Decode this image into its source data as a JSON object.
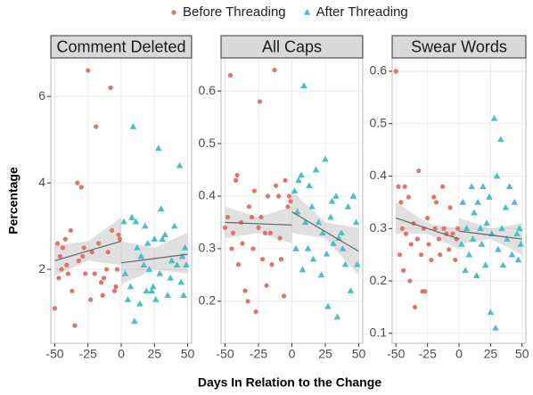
{
  "figure": {
    "xlabel": "Days In Relation to the Change",
    "ylabel": "Percentage"
  },
  "chart_data": [
    {
      "type": "scatter",
      "title": "Comment Deleted",
      "xlim": [
        -53,
        53
      ],
      "xticks": [
        -50,
        -25,
        0,
        25,
        50
      ],
      "ylim": [
        0.29,
        6.89
      ],
      "yticks": [
        2,
        4,
        6
      ],
      "grid": true,
      "series": [
        {
          "name": "Before Threading",
          "color": "#e0736a",
          "shape": "circle",
          "x": [
            -50,
            -48,
            -47,
            -46,
            -45,
            -44,
            -42,
            -41,
            -40,
            -38,
            -37,
            -35,
            -33,
            -32,
            -30,
            -29,
            -28,
            -27,
            -25,
            -23,
            -22,
            -20,
            -19,
            -17,
            -15,
            -14,
            -13,
            -11,
            -10,
            -8,
            -7,
            -5,
            -4,
            -3,
            -2,
            -1
          ],
          "values": [
            1.1,
            2.6,
            1.8,
            2.3,
            2.0,
            2.5,
            2.7,
            2.1,
            1.9,
            2.9,
            1.5,
            0.7,
            4.0,
            2.2,
            3.9,
            2.3,
            2.5,
            1.9,
            6.6,
            1.3,
            2.4,
            1.9,
            5.3,
            2.6,
            1.7,
            1.4,
            1.8,
            2.0,
            2.4,
            6.2,
            2.9,
            1.5,
            1.6,
            2.0,
            2.8,
            2.7
          ],
          "fit_x": [
            -50,
            -25,
            0
          ],
          "fit_y": [
            2.2,
            2.425,
            2.65
          ],
          "band_lower": [
            1.85,
            2.2,
            2.1
          ],
          "band_upper": [
            2.55,
            2.65,
            3.2
          ]
        },
        {
          "name": "After Threading",
          "color": "#4fbdc6",
          "shape": "triangle",
          "x": [
            2,
            3,
            5,
            7,
            8,
            9,
            10,
            11,
            12,
            14,
            15,
            17,
            18,
            19,
            20,
            21,
            23,
            24,
            25,
            26,
            28,
            29,
            30,
            31,
            33,
            35,
            37,
            38,
            40,
            42,
            44,
            45,
            46,
            47,
            48,
            49
          ],
          "values": [
            3.1,
            1.9,
            1.3,
            1.6,
            3.2,
            5.3,
            0.8,
            3.1,
            2.5,
            1.2,
            2.3,
            2.1,
            3.0,
            1.5,
            2.6,
            2.0,
            1.5,
            1.6,
            2.7,
            1.3,
            4.8,
            1.9,
            3.4,
            2.7,
            2.8,
            1.4,
            1.8,
            2.2,
            3.0,
            2.1,
            4.4,
            1.7,
            2.3,
            1.4,
            2.5,
            2.1
          ],
          "fit_x": [
            0,
            25,
            50
          ],
          "fit_y": [
            2.15,
            2.25,
            2.35
          ],
          "band_lower": [
            1.65,
            2.0,
            1.9
          ],
          "band_upper": [
            2.65,
            2.5,
            2.85
          ]
        }
      ]
    },
    {
      "type": "scatter",
      "title": "All Caps",
      "xlim": [
        -53,
        53
      ],
      "xticks": [
        -50,
        -25,
        0,
        25,
        50
      ],
      "ylim": [
        0.12,
        0.663
      ],
      "yticks": [
        0.2,
        0.3,
        0.4,
        0.5,
        0.6
      ],
      "grid": true,
      "series": [
        {
          "name": "Before Threading",
          "color": "#e0736a",
          "shape": "circle",
          "x": [
            -50,
            -48,
            -46,
            -45,
            -44,
            -42,
            -41,
            -40,
            -38,
            -37,
            -35,
            -33,
            -32,
            -30,
            -29,
            -28,
            -27,
            -25,
            -24,
            -23,
            -22,
            -20,
            -19,
            -18,
            -16,
            -15,
            -13,
            -12,
            -10,
            -9,
            -8,
            -6,
            -5,
            -3,
            -2,
            -1
          ],
          "values": [
            0.34,
            0.36,
            0.63,
            0.3,
            0.33,
            0.43,
            0.44,
            0.27,
            0.35,
            0.31,
            0.22,
            0.2,
            0.38,
            0.36,
            0.3,
            0.41,
            0.18,
            0.34,
            0.58,
            0.36,
            0.28,
            0.33,
            0.23,
            0.4,
            0.33,
            0.27,
            0.64,
            0.42,
            0.4,
            0.32,
            0.28,
            0.21,
            0.43,
            0.38,
            0.4,
            0.39
          ],
          "fit_x": [
            -50,
            -25,
            0
          ],
          "fit_y": [
            0.35,
            0.3475,
            0.345
          ],
          "band_lower": [
            0.32,
            0.33,
            0.31
          ],
          "band_upper": [
            0.38,
            0.36,
            0.38
          ]
        },
        {
          "name": "After Threading",
          "color": "#4fbdc6",
          "shape": "triangle",
          "x": [
            2,
            3,
            4,
            5,
            7,
            8,
            9,
            10,
            12,
            13,
            15,
            16,
            18,
            20,
            22,
            23,
            25,
            26,
            27,
            29,
            30,
            31,
            33,
            34,
            35,
            37,
            38,
            40,
            42,
            44,
            46,
            48,
            49
          ],
          "values": [
            0.41,
            0.3,
            0.37,
            0.43,
            0.44,
            0.26,
            0.61,
            0.35,
            0.3,
            0.42,
            0.38,
            0.28,
            0.45,
            0.35,
            0.25,
            0.33,
            0.47,
            0.29,
            0.19,
            0.36,
            0.39,
            0.31,
            0.4,
            0.17,
            0.32,
            0.33,
            0.3,
            0.27,
            0.38,
            0.22,
            0.4,
            0.35,
            0.27
          ],
          "fit_x": [
            0,
            25,
            50
          ],
          "fit_y": [
            0.37,
            0.3325,
            0.295
          ],
          "band_lower": [
            0.33,
            0.32,
            0.25
          ],
          "band_upper": [
            0.41,
            0.35,
            0.34
          ]
        }
      ]
    },
    {
      "type": "scatter",
      "title": "Swear Words",
      "xlim": [
        -53,
        53
      ],
      "xticks": [
        -50,
        -25,
        0,
        25,
        50
      ],
      "ylim": [
        0.081,
        0.6255
      ],
      "yticks": [
        0.1,
        0.2,
        0.3,
        0.4,
        0.5,
        0.6
      ],
      "grid": true,
      "series": [
        {
          "name": "Before Threading",
          "color": "#e0736a",
          "shape": "circle",
          "x": [
            -50,
            -48,
            -47,
            -46,
            -45,
            -44,
            -43,
            -42,
            -40,
            -39,
            -38,
            -36,
            -35,
            -33,
            -32,
            -30,
            -29,
            -28,
            -27,
            -25,
            -24,
            -22,
            -20,
            -19,
            -18,
            -16,
            -15,
            -13,
            -12,
            -10,
            -8,
            -7,
            -5,
            -3,
            -2,
            -1
          ],
          "values": [
            0.6,
            0.38,
            0.25,
            0.35,
            0.3,
            0.22,
            0.38,
            0.29,
            0.36,
            0.2,
            0.27,
            0.31,
            0.15,
            0.28,
            0.41,
            0.25,
            0.18,
            0.3,
            0.18,
            0.32,
            0.27,
            0.24,
            0.36,
            0.3,
            0.35,
            0.28,
            0.25,
            0.38,
            0.3,
            0.29,
            0.26,
            0.34,
            0.29,
            0.24,
            0.28,
            0.3
          ],
          "fit_x": [
            -50,
            -25,
            0
          ],
          "fit_y": [
            0.32,
            0.3,
            0.28
          ],
          "band_lower": [
            0.29,
            0.29,
            0.26
          ],
          "band_upper": [
            0.35,
            0.31,
            0.3
          ]
        },
        {
          "name": "After Threading",
          "color": "#4fbdc6",
          "shape": "triangle",
          "x": [
            2,
            3,
            5,
            6,
            8,
            10,
            11,
            12,
            14,
            15,
            17,
            18,
            19,
            21,
            22,
            24,
            25,
            26,
            28,
            29,
            30,
            31,
            33,
            34,
            35,
            37,
            38,
            40,
            42,
            44,
            46,
            47,
            48,
            49
          ],
          "values": [
            0.27,
            0.35,
            0.22,
            0.3,
            0.25,
            0.38,
            0.28,
            0.33,
            0.21,
            0.35,
            0.3,
            0.27,
            0.38,
            0.23,
            0.31,
            0.36,
            0.14,
            0.29,
            0.51,
            0.11,
            0.4,
            0.26,
            0.47,
            0.3,
            0.23,
            0.34,
            0.28,
            0.38,
            0.25,
            0.35,
            0.29,
            0.24,
            0.3,
            0.27
          ],
          "fit_x": [
            0,
            25,
            50
          ],
          "fit_y": [
            0.295,
            0.2875,
            0.28
          ],
          "band_lower": [
            0.27,
            0.28,
            0.25
          ],
          "band_upper": [
            0.32,
            0.3,
            0.31
          ]
        }
      ]
    }
  ]
}
